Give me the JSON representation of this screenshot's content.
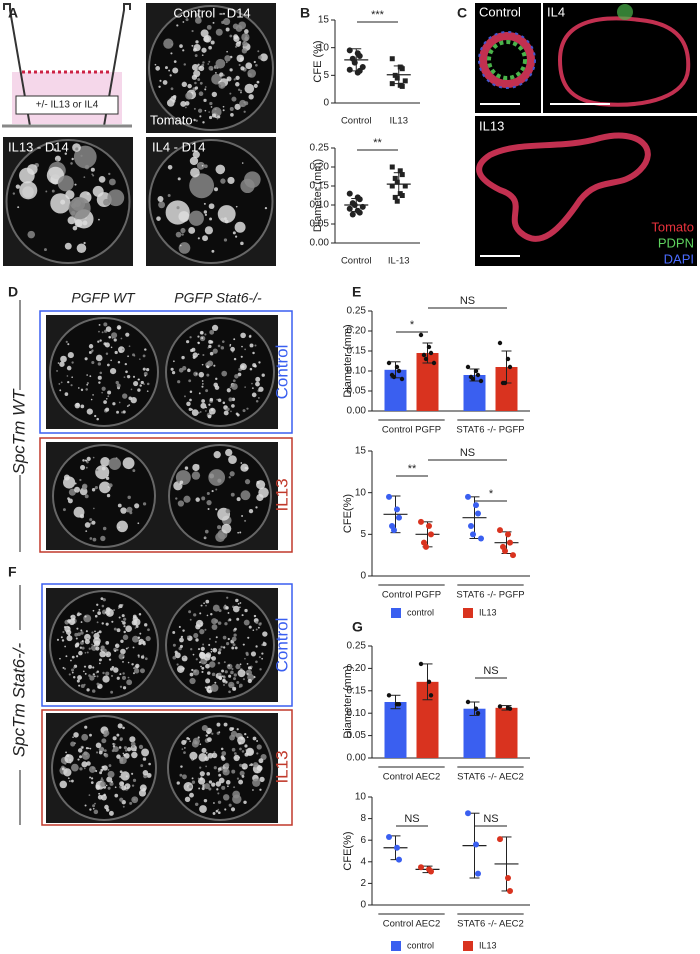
{
  "panels": {
    "A": {
      "letter": "A",
      "inset": "+/- IL13 or IL4",
      "images": [
        "Control - D14",
        "IL13 - D14",
        "IL4 - D14"
      ],
      "stain": "Tomato"
    },
    "B": {
      "letter": "B"
    },
    "C": {
      "letter": "C",
      "images": [
        "Control",
        "IL4",
        "IL13"
      ],
      "stains": [
        "Tomato",
        "PDPN",
        "DAPI"
      ]
    },
    "D": {
      "letter": "D",
      "columns": [
        "PGFP WT",
        "PGFP Stat6-/-"
      ],
      "row_group": "SpcTm WT",
      "rows": [
        "Control",
        "IL13"
      ]
    },
    "E": {
      "letter": "E"
    },
    "F": {
      "letter": "F",
      "row_group": "SpcTm Stat6-/-",
      "rows": [
        "Control",
        "IL13"
      ]
    },
    "G": {
      "letter": "G"
    }
  },
  "chart_data": [
    {
      "type": "dot",
      "ylabel": "CFE (%)",
      "categories": [
        "Control",
        "IL13"
      ],
      "markers": [
        "circle",
        "square"
      ],
      "ylim": [
        0,
        15
      ],
      "yticks": [
        0,
        5,
        10,
        15
      ],
      "annotations": [
        "***"
      ],
      "series": [
        {
          "color": "#222222",
          "values": [
            7.8,
            5.1
          ],
          "errors": [
            2.0,
            1.6
          ],
          "points": [
            [
              9.5,
              9.0,
              8.5,
              8.0,
              7.3,
              6.5,
              6.0,
              5.5,
              5.8
            ],
            [
              8.0,
              6.5,
              6.2,
              5.0,
              4.5,
              4.0,
              3.5,
              3.2,
              3.0
            ]
          ]
        }
      ]
    },
    {
      "type": "dot",
      "ylabel": "Diameter (mm)",
      "categories": [
        "Control",
        "IL-13"
      ],
      "markers": [
        "circle",
        "square"
      ],
      "ylim": [
        0,
        0.25
      ],
      "yticks": [
        {
          "value": 0,
          "label": "0.00"
        },
        0.05,
        {
          "value": 0.1,
          "label": "0.10"
        },
        0.15,
        {
          "value": 0.2,
          "label": "0.20"
        },
        0.25
      ],
      "annotations": [
        "**"
      ],
      "series": [
        {
          "color": "#222222",
          "values": [
            0.1,
            0.155
          ],
          "errors": [
            0.017,
            0.03
          ],
          "points": [
            [
              0.13,
              0.12,
              0.115,
              0.105,
              0.1,
              0.095,
              0.09,
              0.085,
              0.08,
              0.075
            ],
            [
              0.2,
              0.19,
              0.18,
              0.17,
              0.16,
              0.15,
              0.15,
              0.13,
              0.125,
              0.12,
              0.11
            ]
          ]
        }
      ]
    },
    {
      "type": "bar",
      "ylabel": "Diameter (mm)",
      "categories": [
        "Control PGFP",
        "STAT6 -/- PGFP"
      ],
      "ylim": [
        0,
        0.25
      ],
      "yticks": [
        {
          "value": 0,
          "label": "0.00"
        },
        0.05,
        {
          "value": 0.1,
          "label": "0.10"
        },
        0.15,
        {
          "value": 0.2,
          "label": "0.20"
        },
        0.25
      ],
      "annotations": [
        "*",
        "NS"
      ],
      "series": [
        {
          "color": "#3a5ff0",
          "values": [
            0.103,
            0.09
          ],
          "errors": [
            0.02,
            0.015
          ],
          "points": [
            [
              0.12,
              0.11,
              0.1,
              0.09,
              0.085,
              0.08
            ],
            [
              0.11,
              0.1,
              0.09,
              0.085,
              0.08,
              0.075
            ]
          ]
        },
        {
          "color": "#d9331f",
          "values": [
            0.145,
            0.11
          ],
          "errors": [
            0.025,
            0.04
          ],
          "points": [
            [
              0.19,
              0.16,
              0.145,
              0.14,
              0.13,
              0.12
            ],
            [
              0.17,
              0.13,
              0.11,
              0.07,
              0.07
            ]
          ]
        }
      ]
    },
    {
      "type": "dot",
      "ylabel": "CFE(%)",
      "categories": [
        "Control PGFP",
        "STAT6 -/- PGFP"
      ],
      "legend": true,
      "ylim": [
        0,
        15
      ],
      "yticks": [
        0,
        5,
        10,
        15
      ],
      "annotations": [
        "**",
        "NS",
        "*"
      ],
      "series": [
        {
          "name": "control",
          "color": "#3a5ff0",
          "values": [
            7.4,
            7.0
          ],
          "errors": [
            2.2,
            2.5
          ],
          "points": [
            [
              9.5,
              8.0,
              7.0,
              6.0,
              5.5
            ],
            [
              9.5,
              8.5,
              7.5,
              6.0,
              5.0,
              4.5
            ]
          ]
        },
        {
          "name": "IL13",
          "color": "#d9331f",
          "values": [
            5.0,
            4.0
          ],
          "errors": [
            1.5,
            1.3
          ],
          "points": [
            [
              6.5,
              6.0,
              5.0,
              4.0,
              3.5
            ],
            [
              5.5,
              5.0,
              4.0,
              3.5,
              3.0,
              2.5
            ]
          ]
        }
      ]
    },
    {
      "type": "bar",
      "ylabel": "Diameter (mm)",
      "categories": [
        "Control AEC2",
        "STAT6 -/- AEC2"
      ],
      "ylim": [
        0,
        0.25
      ],
      "yticks": [
        {
          "value": 0,
          "label": "0.00"
        },
        0.05,
        {
          "value": 0.1,
          "label": "0.10"
        },
        0.15,
        {
          "value": 0.2,
          "label": "0.20"
        },
        0.25
      ],
      "annotations": [
        "NS"
      ],
      "series": [
        {
          "color": "#3a5ff0",
          "values": [
            0.125,
            0.11
          ],
          "errors": [
            0.015,
            0.015
          ],
          "points": [
            [
              0.14,
              0.12,
              0.12
            ],
            [
              0.125,
              0.11,
              0.1
            ]
          ]
        },
        {
          "color": "#d9331f",
          "values": [
            0.17,
            0.112
          ],
          "errors": [
            0.04,
            0.005
          ],
          "points": [
            [
              0.21,
              0.17,
              0.14
            ],
            [
              0.115,
              0.112,
              0.11
            ]
          ]
        }
      ]
    },
    {
      "type": "dot",
      "ylabel": "CFE(%)",
      "categories": [
        "Control AEC2",
        "STAT6 -/- AEC2"
      ],
      "legend": true,
      "ylim": [
        0,
        10
      ],
      "yticks": [
        0,
        2,
        4,
        6,
        8,
        10
      ],
      "annotations": [
        "NS",
        "NS"
      ],
      "series": [
        {
          "name": "control",
          "color": "#3a5ff0",
          "values": [
            5.3,
            5.5
          ],
          "errors": [
            1.1,
            3.0
          ],
          "points": [
            [
              6.3,
              5.3,
              4.2
            ],
            [
              8.5,
              5.6,
              2.9
            ]
          ]
        },
        {
          "name": "IL13",
          "color": "#d9331f",
          "values": [
            3.3,
            3.8
          ],
          "errors": [
            0.3,
            2.5
          ],
          "points": [
            [
              3.5,
              3.3,
              3.1
            ],
            [
              6.1,
              2.5,
              1.3
            ]
          ]
        }
      ]
    }
  ]
}
